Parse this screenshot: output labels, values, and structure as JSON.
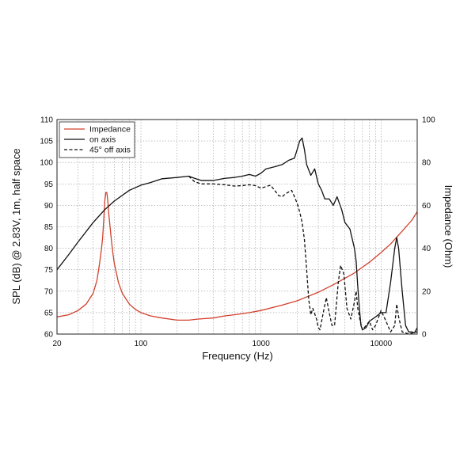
{
  "chart_data": {
    "type": "line",
    "xlabel": "Frequency (Hz)",
    "ylabel_left": "SPL (dB) @ 2.83V, 1m, half space",
    "ylabel_right": "Impedance (Ohm)",
    "x_scale": "log",
    "xlim": [
      20,
      20000
    ],
    "ylim_left": [
      60,
      110
    ],
    "ylim_right": [
      0,
      100
    ],
    "grid": true,
    "legend_position": "top-left",
    "x_ticks": [
      {
        "value": 20,
        "label": "20"
      },
      {
        "value": 100,
        "label": "100"
      },
      {
        "value": 1000,
        "label": "1000"
      },
      {
        "value": 10000,
        "label": "10000"
      }
    ],
    "y_ticks_left": [
      "60",
      "65",
      "70",
      "75",
      "80",
      "85",
      "90",
      "95",
      "100",
      "105",
      "110"
    ],
    "y_ticks_right": [
      "0",
      "20",
      "40",
      "60",
      "80",
      "100"
    ],
    "series": [
      {
        "name": "Impedance",
        "axis": "right",
        "color": "#d2402c",
        "style": "solid",
        "points": [
          [
            20,
            8
          ],
          [
            25,
            9
          ],
          [
            30,
            11
          ],
          [
            35,
            14
          ],
          [
            40,
            19
          ],
          [
            43,
            25
          ],
          [
            45,
            32
          ],
          [
            47,
            40
          ],
          [
            48,
            45
          ],
          [
            49,
            53
          ],
          [
            50,
            62
          ],
          [
            51,
            66
          ],
          [
            52,
            66
          ],
          [
            53,
            62
          ],
          [
            54,
            56
          ],
          [
            56,
            47
          ],
          [
            58,
            39
          ],
          [
            60,
            33
          ],
          [
            65,
            24
          ],
          [
            70,
            19
          ],
          [
            80,
            14
          ],
          [
            90,
            11.5
          ],
          [
            100,
            10
          ],
          [
            120,
            8.5
          ],
          [
            150,
            7.5
          ],
          [
            200,
            6.5
          ],
          [
            250,
            6.5
          ],
          [
            300,
            7
          ],
          [
            400,
            7.5
          ],
          [
            500,
            8.5
          ],
          [
            600,
            9
          ],
          [
            800,
            10
          ],
          [
            1000,
            11
          ],
          [
            1500,
            13.5
          ],
          [
            2000,
            15.5
          ],
          [
            3000,
            19.5
          ],
          [
            4000,
            23
          ],
          [
            5000,
            26
          ],
          [
            6000,
            28.5
          ],
          [
            8000,
            33.5
          ],
          [
            10000,
            38
          ],
          [
            12000,
            42
          ],
          [
            15000,
            48
          ],
          [
            18000,
            53
          ],
          [
            20000,
            57
          ]
        ]
      },
      {
        "name": "on axis",
        "axis": "left",
        "color": "#111111",
        "style": "solid",
        "points": [
          [
            20,
            75
          ],
          [
            25,
            78.5
          ],
          [
            30,
            81.5
          ],
          [
            40,
            86
          ],
          [
            50,
            89
          ],
          [
            60,
            91
          ],
          [
            80,
            93.5
          ],
          [
            100,
            94.7
          ],
          [
            120,
            95.3
          ],
          [
            150,
            96.2
          ],
          [
            200,
            96.5
          ],
          [
            250,
            96.8
          ],
          [
            280,
            96.3
          ],
          [
            320,
            95.8
          ],
          [
            400,
            95.8
          ],
          [
            500,
            96.3
          ],
          [
            600,
            96.5
          ],
          [
            700,
            96.8
          ],
          [
            800,
            97.2
          ],
          [
            900,
            96.8
          ],
          [
            1000,
            97.5
          ],
          [
            1100,
            98.5
          ],
          [
            1300,
            99
          ],
          [
            1500,
            99.5
          ],
          [
            1700,
            100.5
          ],
          [
            1900,
            101
          ],
          [
            2000,
            103
          ],
          [
            2100,
            105
          ],
          [
            2200,
            105.7
          ],
          [
            2300,
            103
          ],
          [
            2400,
            99.5
          ],
          [
            2600,
            97
          ],
          [
            2800,
            98.5
          ],
          [
            3000,
            95
          ],
          [
            3200,
            93.5
          ],
          [
            3400,
            91.5
          ],
          [
            3700,
            91.5
          ],
          [
            4000,
            90
          ],
          [
            4300,
            92
          ],
          [
            4700,
            89
          ],
          [
            5000,
            86
          ],
          [
            5500,
            84.5
          ],
          [
            6000,
            80
          ],
          [
            6200,
            77
          ],
          [
            6400,
            71
          ],
          [
            6600,
            66
          ],
          [
            6800,
            62
          ],
          [
            7000,
            61
          ],
          [
            7500,
            61.5
          ],
          [
            8000,
            63
          ],
          [
            9000,
            64
          ],
          [
            10000,
            65
          ],
          [
            11000,
            65
          ],
          [
            12000,
            72
          ],
          [
            13000,
            80
          ],
          [
            13500,
            82.5
          ],
          [
            14000,
            80
          ],
          [
            15000,
            70
          ],
          [
            16000,
            62
          ],
          [
            17000,
            60.5
          ],
          [
            18000,
            60.5
          ],
          [
            19000,
            60.3
          ],
          [
            20000,
            61.5
          ]
        ]
      },
      {
        "name": "45° off axis",
        "axis": "left",
        "color": "#111111",
        "style": "dashed",
        "points": [
          [
            250,
            96.8
          ],
          [
            280,
            95.5
          ],
          [
            320,
            95
          ],
          [
            400,
            95
          ],
          [
            500,
            94.8
          ],
          [
            600,
            94.5
          ],
          [
            700,
            94.6
          ],
          [
            800,
            94.8
          ],
          [
            900,
            94.6
          ],
          [
            1000,
            94
          ],
          [
            1200,
            94.7
          ],
          [
            1300,
            93.5
          ],
          [
            1400,
            92.3
          ],
          [
            1500,
            92
          ],
          [
            1600,
            92.7
          ],
          [
            1800,
            93.5
          ],
          [
            1900,
            92
          ],
          [
            2000,
            90.5
          ],
          [
            2100,
            88.5
          ],
          [
            2200,
            86
          ],
          [
            2300,
            82
          ],
          [
            2400,
            75
          ],
          [
            2500,
            68
          ],
          [
            2600,
            64.5
          ],
          [
            2700,
            66
          ],
          [
            2900,
            63.5
          ],
          [
            3000,
            61.5
          ],
          [
            3100,
            61
          ],
          [
            3300,
            65
          ],
          [
            3500,
            68.5
          ],
          [
            3700,
            65
          ],
          [
            3900,
            62
          ],
          [
            4100,
            62
          ],
          [
            4400,
            72
          ],
          [
            4600,
            76
          ],
          [
            4900,
            74
          ],
          [
            5200,
            66
          ],
          [
            5600,
            63.5
          ],
          [
            6000,
            67.5
          ],
          [
            6200,
            70
          ],
          [
            6400,
            66
          ],
          [
            6700,
            63
          ],
          [
            7000,
            61
          ],
          [
            7500,
            62
          ],
          [
            8000,
            63
          ],
          [
            8500,
            61
          ],
          [
            9000,
            62
          ],
          [
            10000,
            65.5
          ],
          [
            11000,
            63
          ],
          [
            12000,
            60.5
          ],
          [
            13000,
            62
          ],
          [
            13500,
            67
          ],
          [
            14000,
            64
          ],
          [
            15000,
            60.5
          ],
          [
            16000,
            60.3
          ],
          [
            17000,
            60
          ],
          [
            18000,
            60.2
          ],
          [
            19000,
            60.5
          ],
          [
            20000,
            60.5
          ]
        ]
      }
    ]
  }
}
